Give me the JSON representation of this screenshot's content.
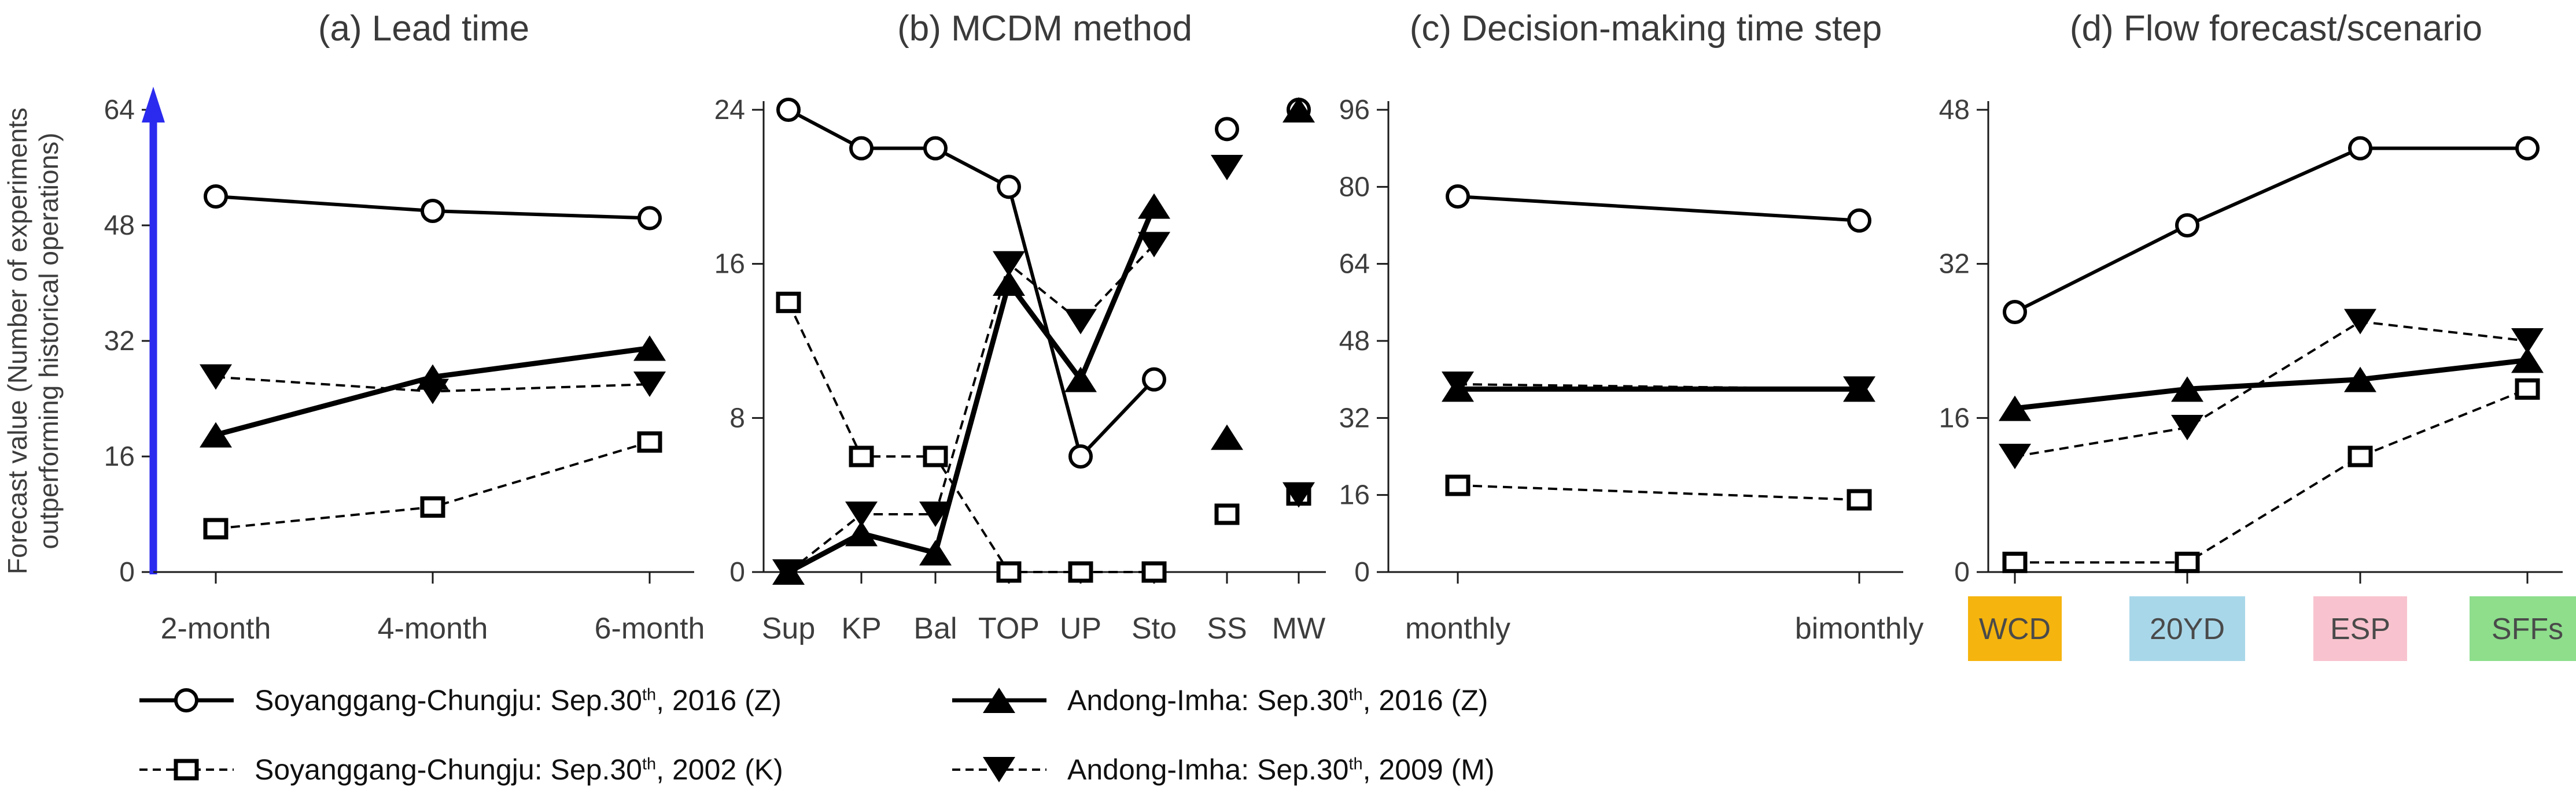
{
  "figure": {
    "ylabel_line1": "Forecast value (Number of experiments",
    "ylabel_line2": "outperforming historical operations)",
    "background_color": "#ffffff",
    "axis_text_color": "#3d3d3d",
    "data_color": "#000000"
  },
  "chart_data": [
    {
      "type": "line",
      "panel": "a",
      "title": "(a) Lead time",
      "categories": [
        "2-month",
        "4-month",
        "6-month"
      ],
      "ylim": [
        0,
        64
      ],
      "yticks": [
        0,
        16,
        32,
        48,
        64
      ],
      "y_axis_style": "blue-arrow",
      "y_axis_color": "#2B2BEF",
      "series": [
        {
          "name": "Soyanggang-Chungju: Sep.30th, 2016 (Z)",
          "marker": "circle-open",
          "line": "solid",
          "values": [
            52,
            50,
            49
          ]
        },
        {
          "name": "Soyanggang-Chungju: Sep.30th, 2002 (K)",
          "marker": "square-open",
          "line": "dashed",
          "values": [
            6,
            9,
            18
          ]
        },
        {
          "name": "Andong-Imha: Sep.30th, 2016 (Z)",
          "marker": "triangle-up",
          "line": "solid",
          "values": [
            19,
            27,
            31
          ]
        },
        {
          "name": "Andong-Imha: Sep.30th, 2009 (M)",
          "marker": "triangle-down",
          "line": "dashed",
          "values": [
            27,
            25,
            26
          ]
        }
      ]
    },
    {
      "type": "line",
      "panel": "b",
      "title": "(b) MCDM method",
      "categories": [
        "Sup",
        "KP",
        "Bal",
        "TOP",
        "UP",
        "Sto",
        "SS",
        "MW"
      ],
      "ylim": [
        0,
        24
      ],
      "yticks": [
        0,
        8,
        16,
        24
      ],
      "connect_first_n": 6,
      "series": [
        {
          "name": "Soyanggang-Chungju: Sep.30th, 2016 (Z)",
          "marker": "circle-open",
          "line": "solid",
          "values": [
            24,
            22,
            22,
            20,
            6,
            10,
            23,
            24
          ]
        },
        {
          "name": "Soyanggang-Chungju: Sep.30th, 2002 (K)",
          "marker": "square-open",
          "line": "dashed",
          "values": [
            14,
            6,
            6,
            0,
            0,
            0,
            3,
            4
          ]
        },
        {
          "name": "Andong-Imha: Sep.30th, 2016 (Z)",
          "marker": "triangle-up",
          "line": "solid",
          "values": [
            0,
            2,
            1,
            15,
            10,
            19,
            7,
            24
          ]
        },
        {
          "name": "Andong-Imha: Sep.30th, 2009 (M)",
          "marker": "triangle-down",
          "line": "dashed",
          "values": [
            0,
            3,
            3,
            16,
            13,
            17,
            21,
            4
          ]
        }
      ]
    },
    {
      "type": "line",
      "panel": "c",
      "title": "(c) Decision-making time step",
      "categories": [
        "monthly",
        "bimonthly"
      ],
      "ylim": [
        0,
        96
      ],
      "yticks": [
        0,
        16,
        32,
        48,
        64,
        80,
        96
      ],
      "series": [
        {
          "name": "Soyanggang-Chungju: Sep.30th, 2016 (Z)",
          "marker": "circle-open",
          "line": "solid",
          "values": [
            78,
            73
          ]
        },
        {
          "name": "Soyanggang-Chungju: Sep.30th, 2002 (K)",
          "marker": "square-open",
          "line": "dashed",
          "values": [
            18,
            15
          ]
        },
        {
          "name": "Andong-Imha: Sep.30th, 2016 (Z)",
          "marker": "triangle-up",
          "line": "solid",
          "values": [
            38,
            38
          ]
        },
        {
          "name": "Andong-Imha: Sep.30th, 2009 (M)",
          "marker": "triangle-down",
          "line": "dashed",
          "values": [
            39,
            38
          ]
        }
      ]
    },
    {
      "type": "line",
      "panel": "d",
      "title": "(d) Flow forecast/scenario",
      "categories": [
        "WCD",
        "20YD",
        "ESP",
        "SFFs"
      ],
      "ylim": [
        0,
        48
      ],
      "yticks": [
        0,
        16,
        32,
        48
      ],
      "chip_colors": [
        "#F5B40E",
        "#A9D7EA",
        "#F8C3CE",
        "#8EDE8C"
      ],
      "chip_text_color": "#4a4a4a",
      "series": [
        {
          "name": "Soyanggang-Chungju: Sep.30th, 2016 (Z)",
          "marker": "circle-open",
          "line": "solid",
          "values": [
            27,
            36,
            44,
            44
          ]
        },
        {
          "name": "Soyanggang-Chungju: Sep.30th, 2002 (K)",
          "marker": "square-open",
          "line": "dashed",
          "values": [
            1,
            1,
            12,
            19
          ]
        },
        {
          "name": "Andong-Imha: Sep.30th, 2016 (Z)",
          "marker": "triangle-up",
          "line": "solid",
          "values": [
            17,
            19,
            20,
            22
          ]
        },
        {
          "name": "Andong-Imha: Sep.30th, 2009 (M)",
          "marker": "triangle-down",
          "line": "dashed",
          "values": [
            12,
            15,
            26,
            24
          ]
        }
      ]
    }
  ],
  "legend": {
    "items": [
      {
        "pre": "Soyanggang-Chungju: Sep.30",
        "sup": "th",
        "post": ", 2016 (Z)",
        "marker": "circle-open",
        "line": "solid"
      },
      {
        "pre": "Soyanggang-Chungju: Sep.30",
        "sup": "th",
        "post": ", 2002 (K)",
        "marker": "square-open",
        "line": "dashed"
      },
      {
        "pre": "Andong-Imha: Sep.30",
        "sup": "th",
        "post": ", 2016 (Z)",
        "marker": "triangle-up",
        "line": "solid"
      },
      {
        "pre": "Andong-Imha: Sep.30",
        "sup": "th",
        "post": ", 2009 (M)",
        "marker": "triangle-down",
        "line": "dashed"
      }
    ]
  }
}
